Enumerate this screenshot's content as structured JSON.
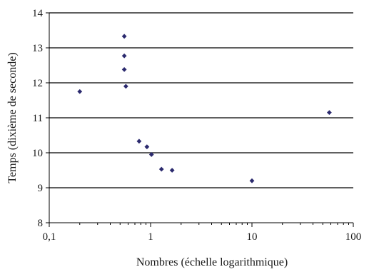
{
  "chart_data": {
    "type": "scatter",
    "xlabel": "Nombres (échelle logarithmique)",
    "ylabel": "Temps (dixième de seconde)",
    "x_scale": "log",
    "xlim": [
      0.1,
      100
    ],
    "ylim": [
      8,
      14
    ],
    "x_ticks": [
      {
        "value": 0.1,
        "label": "0,1"
      },
      {
        "value": 1,
        "label": "1"
      },
      {
        "value": 10,
        "label": "10"
      },
      {
        "value": 100,
        "label": "100"
      }
    ],
    "y_ticks": [
      {
        "value": 8,
        "label": "8"
      },
      {
        "value": 9,
        "label": "9"
      },
      {
        "value": 10,
        "label": "10"
      },
      {
        "value": 11,
        "label": "11"
      },
      {
        "value": 12,
        "label": "12"
      },
      {
        "value": 13,
        "label": "13"
      },
      {
        "value": 14,
        "label": "14"
      }
    ],
    "grid": "horizontal",
    "legend": "none",
    "marker_color": "#2b2a6e",
    "marker": "diamond",
    "points": [
      {
        "x": 0.2,
        "y": 11.75
      },
      {
        "x": 0.55,
        "y": 13.33
      },
      {
        "x": 0.55,
        "y": 12.77
      },
      {
        "x": 0.55,
        "y": 12.38
      },
      {
        "x": 0.57,
        "y": 11.9
      },
      {
        "x": 0.77,
        "y": 10.33
      },
      {
        "x": 0.92,
        "y": 10.17
      },
      {
        "x": 1.02,
        "y": 9.95
      },
      {
        "x": 1.28,
        "y": 9.53
      },
      {
        "x": 1.63,
        "y": 9.5
      },
      {
        "x": 10,
        "y": 9.2
      },
      {
        "x": 58,
        "y": 11.15
      }
    ]
  }
}
